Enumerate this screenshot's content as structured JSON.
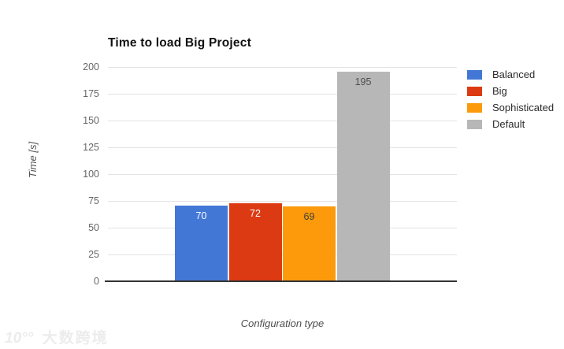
{
  "chart_data": {
    "type": "bar",
    "title": "Time to load Big Project",
    "categories": [
      "Balanced",
      "Big",
      "Sophisticated",
      "Default"
    ],
    "values": [
      70,
      72,
      69,
      195
    ],
    "colors": [
      "#4277d6",
      "#dc3a12",
      "#fc9a0b",
      "#b7b7b7"
    ],
    "value_label_colors": [
      "#ffffff",
      "#ffffff",
      "#404040",
      "#4d4d4d"
    ],
    "xlabel": "Configuration type",
    "ylabel": "Time [s]",
    "ylim": [
      0,
      200
    ],
    "yticks": [
      0,
      25,
      50,
      75,
      100,
      125,
      150,
      175,
      200
    ],
    "grid": true,
    "legend": [
      "Balanced",
      "Big",
      "Sophisticated",
      "Default"
    ],
    "legend_position": "right"
  },
  "watermark": {
    "logo": "10°°",
    "text": "大数跨境"
  }
}
